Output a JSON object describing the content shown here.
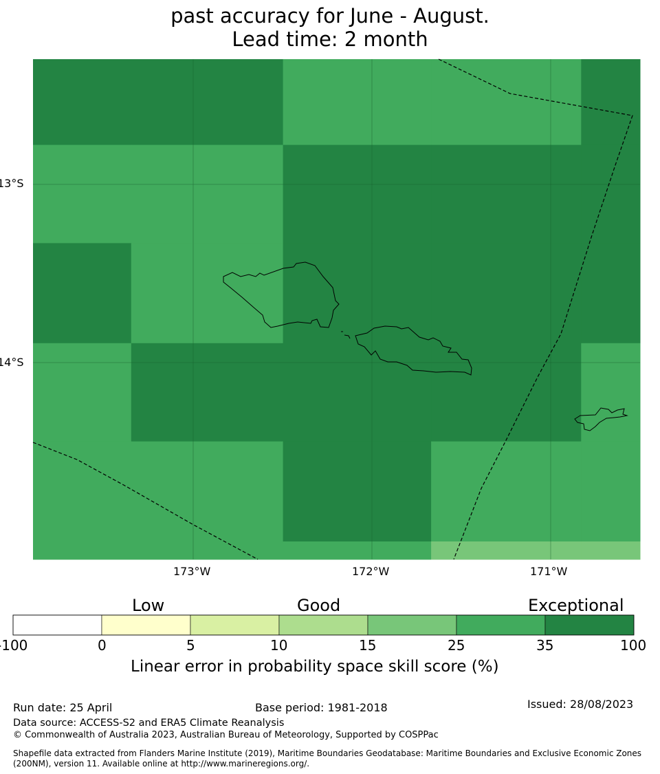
{
  "title": {
    "line1": "past accuracy for June - August.",
    "line2": "Lead time: 2 month"
  },
  "map": {
    "lat_labels": [
      "13°S",
      "14°S"
    ],
    "lon_labels": [
      "173°W",
      "172°W",
      "171°W"
    ],
    "extent": {
      "lon": [
        -173.9,
        -170.5
      ],
      "lat": [
        -12.3,
        -15.1
      ]
    },
    "skill_grid_lon_edges": [
      -173.9,
      -173.35,
      -172.5,
      -171.67,
      -170.83,
      -170.5
    ],
    "skill_grid": [
      {
        "lat_range": [
          -12.3,
          -12.78
        ],
        "classes": [
          "35-100",
          "35-100",
          "25-35",
          "25-35",
          "35-100"
        ]
      },
      {
        "lat_range": [
          -12.78,
          -13.33
        ],
        "classes": [
          "25-35",
          "25-35",
          "35-100",
          "35-100",
          "35-100"
        ]
      },
      {
        "lat_range": [
          -13.33,
          -13.89
        ],
        "classes": [
          "35-100",
          "25-35",
          "35-100",
          "35-100",
          "35-100"
        ]
      },
      {
        "lat_range": [
          -13.89,
          -14.44
        ],
        "classes": [
          "25-35",
          "35-100",
          "35-100",
          "35-100",
          "25-35"
        ]
      },
      {
        "lat_range": [
          -14.44,
          -15.0
        ],
        "classes": [
          "25-35",
          "25-35",
          "35-100",
          "25-35",
          "25-35"
        ]
      },
      {
        "lat_range": [
          -15.0,
          -15.1
        ],
        "classes": [
          "25-35",
          "25-35",
          "25-35",
          "15-25",
          "15-25"
        ]
      }
    ]
  },
  "colorbar": {
    "category_labels": [
      "Low",
      "Good",
      "Exceptional"
    ],
    "ticks": [
      "-100",
      "0",
      "5",
      "10",
      "15",
      "25",
      "35",
      "100"
    ],
    "colors": [
      "#ffffff",
      "#ffffcc",
      "#d9f0a3",
      "#addd8e",
      "#78c679",
      "#41ab5d",
      "#238443"
    ],
    "xlabel": "Linear error in probability space skill score (%)"
  },
  "footer": {
    "run_date": "Run date: 25 April",
    "base_period": "Base period: 1981-2018",
    "issued": "Issued: 28/08/2023",
    "data_source": "Data source: ACCESS-S2 and ERA5 Climate Reanalysis",
    "copyright": "© Commonwealth of Australia 2023, Australian Bureau of Meteorology, Supported by COSPPac",
    "shapefile": "Shapefile data extracted from Flanders Marine Institute (2019), Maritime Boundaries Geodatabase: Maritime Boundaries and Exclusive Economic Zones (200NM), version 11. Available online at http://www.marineregions.org/."
  }
}
